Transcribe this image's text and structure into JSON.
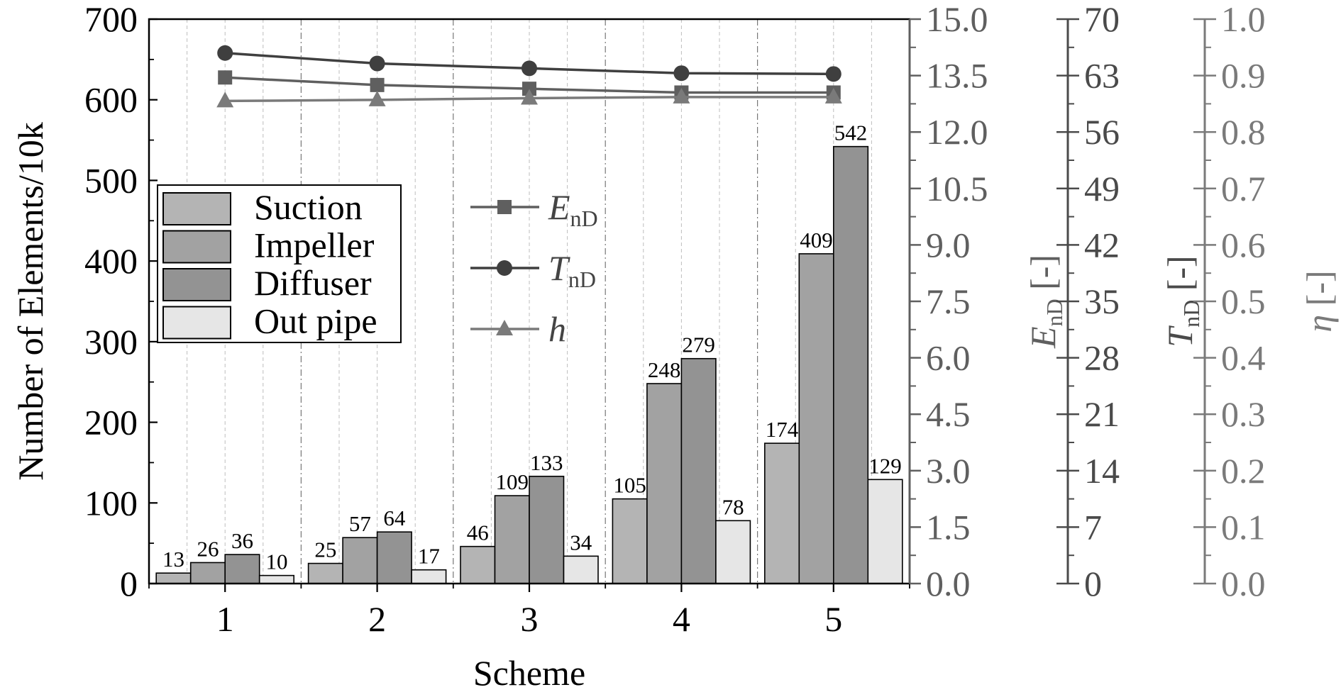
{
  "chart_data": {
    "type": "bar",
    "xlabel": "Scheme",
    "ylabel": "Number of Elements/10k",
    "ylim": [
      0,
      700
    ],
    "yticks": [
      0,
      100,
      200,
      300,
      400,
      500,
      600,
      700
    ],
    "categories": [
      "1",
      "2",
      "3",
      "4",
      "5"
    ],
    "series": [
      {
        "name": "Suction",
        "values": [
          13,
          25,
          46,
          105,
          174
        ],
        "color": "#b4b4b4"
      },
      {
        "name": "Impeller",
        "values": [
          26,
          57,
          109,
          248,
          409
        ],
        "color": "#a2a2a2"
      },
      {
        "name": "Diffuser",
        "values": [
          36,
          64,
          133,
          279,
          542
        ],
        "color": "#939393"
      },
      {
        "name": "Out pipe",
        "values": [
          10,
          17,
          34,
          78,
          129
        ],
        "color": "#e6e6e6"
      }
    ],
    "data_labels": [
      [
        "13",
        "26",
        "36",
        "10"
      ],
      [
        "25",
        "57",
        "64",
        "17"
      ],
      [
        "46",
        "109",
        "133",
        "34"
      ],
      [
        "105",
        "248",
        "279",
        "78"
      ],
      [
        "174",
        "409",
        "542",
        "129"
      ]
    ],
    "grid": "vertical-dashed",
    "legend": {
      "placement": "middle-left",
      "entries": [
        "Suction",
        "Impeller",
        "Diffuser",
        "Out pipe"
      ]
    },
    "line_legend": {
      "placement": "center",
      "entries": [
        {
          "main": "E",
          "sub": "nD",
          "italic": true,
          "marker": "square"
        },
        {
          "main": "T",
          "sub": "nD",
          "italic": true,
          "marker": "circle"
        },
        {
          "main": "h",
          "sub": "",
          "italic": true,
          "marker": "triangle"
        }
      ]
    },
    "right_axes": [
      {
        "label_main": "E",
        "label_sub": "nD",
        "label_unit": " [-]",
        "ylim": [
          0,
          15
        ],
        "ticks": [
          "0.0",
          "1.5",
          "3.0",
          "4.5",
          "6.0",
          "7.5",
          "9.0",
          "10.5",
          "12.0",
          "13.5",
          "15.0"
        ],
        "color": "#5f5f5f"
      },
      {
        "label_main": "T",
        "label_sub": "nD",
        "label_unit": " [-]",
        "ylim": [
          0,
          70
        ],
        "ticks": [
          "0",
          "7",
          "14",
          "21",
          "28",
          "35",
          "42",
          "49",
          "56",
          "63",
          "70"
        ],
        "color": "#4a4a4a"
      },
      {
        "label_main": "η",
        "label_sub": "",
        "label_unit": " [-]",
        "ylim": [
          0,
          1
        ],
        "ticks": [
          "0.0",
          "0.1",
          "0.2",
          "0.3",
          "0.4",
          "0.5",
          "0.6",
          "0.7",
          "0.8",
          "0.9",
          "1.0"
        ],
        "color": "#7a7a7a"
      }
    ],
    "lines": [
      {
        "name": "EnD",
        "axis": 0,
        "marker": "square",
        "color": "#5f5f5f",
        "values": [
          13.45,
          13.25,
          13.15,
          13.05,
          13.05
        ]
      },
      {
        "name": "TnD",
        "axis": 1,
        "marker": "circle",
        "color": "#3f3f3f",
        "values": [
          65.8,
          64.5,
          63.9,
          63.3,
          63.2
        ]
      },
      {
        "name": "h",
        "axis": 2,
        "marker": "triangle",
        "color": "#7a7a7a",
        "values": [
          0.855,
          0.857,
          0.86,
          0.862,
          0.862
        ]
      }
    ]
  }
}
